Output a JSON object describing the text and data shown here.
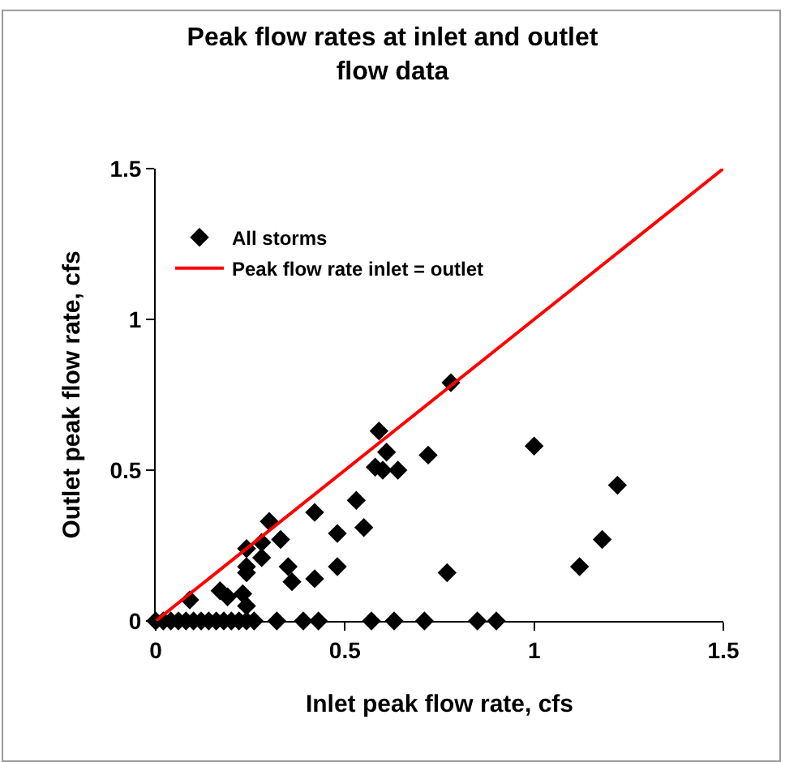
{
  "chart_data": {
    "type": "scatter",
    "title": "Peak flow rates at inlet and outlet",
    "subtitle": "flow data",
    "xlabel": "Inlet peak flow rate, cfs",
    "ylabel": "Outlet peak flow rate, cfs",
    "xlim": [
      0,
      1.5
    ],
    "ylim": [
      0,
      1.5
    ],
    "xticks": [
      0,
      0.5,
      1,
      1.5
    ],
    "yticks": [
      0,
      0.5,
      1,
      1.5
    ],
    "legend": "top left",
    "series": [
      {
        "name": "All storms",
        "marker": "diamond",
        "color": "#000000",
        "x": [
          0.78,
          0.59,
          0.61,
          0.72,
          0.58,
          0.6,
          0.64,
          0.53,
          0.42,
          0.3,
          0.33,
          0.55,
          0.48,
          0.28,
          0.24,
          0.28,
          0.24,
          0.24,
          0.35,
          0.36,
          0.48,
          0.42,
          0.77,
          0.09,
          0.17,
          0.19,
          0.23,
          0.24,
          1.0,
          1.22,
          1.18,
          1.12,
          0,
          0.02,
          0.04,
          0.06,
          0.08,
          0.1,
          0.12,
          0.14,
          0.16,
          0.18,
          0.2,
          0.22,
          0.24,
          0.26,
          0.32,
          0.39,
          0.43,
          0.57,
          0.63,
          0.71,
          0.85,
          0.9
        ],
        "values": [
          0.79,
          0.63,
          0.56,
          0.55,
          0.51,
          0.5,
          0.5,
          0.4,
          0.36,
          0.33,
          0.27,
          0.31,
          0.29,
          0.26,
          0.24,
          0.21,
          0.18,
          0.16,
          0.18,
          0.13,
          0.18,
          0.14,
          0.16,
          0.07,
          0.1,
          0.08,
          0.09,
          0.05,
          0.58,
          0.45,
          0.27,
          0.18,
          0,
          0,
          0,
          0,
          0,
          0,
          0,
          0,
          0,
          0,
          0,
          0,
          0,
          0,
          0,
          0,
          0,
          0,
          0,
          0,
          0,
          0
        ]
      },
      {
        "name": "Peak flow rate inlet = outlet",
        "type": "line",
        "marker": "none",
        "line_style": "solid",
        "color": "#ff0000",
        "x": [
          0,
          1.5
        ],
        "values": [
          0,
          1.5
        ]
      }
    ]
  }
}
